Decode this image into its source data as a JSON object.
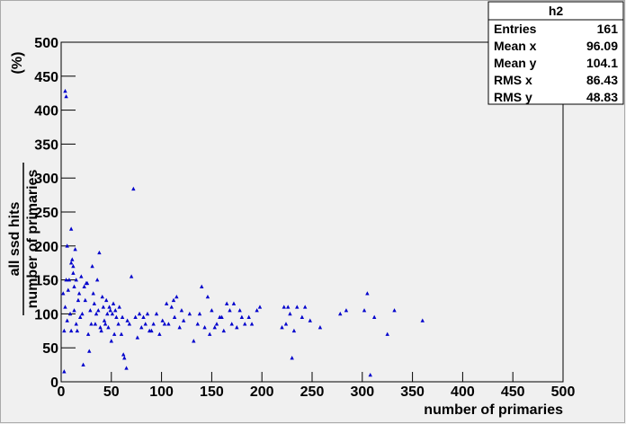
{
  "chart_data": {
    "type": "scatter",
    "x_label": "number of primaries",
    "y_label_numerator": "all ssd hits",
    "y_label_denominator": "number of primaries",
    "y_label_unit": "(%)",
    "xlim": [
      0,
      500
    ],
    "ylim": [
      0,
      500
    ],
    "xticks": [
      0,
      50,
      100,
      150,
      200,
      250,
      300,
      350,
      400,
      450,
      500
    ],
    "yticks": [
      0,
      50,
      100,
      150,
      200,
      250,
      300,
      350,
      400,
      450,
      500
    ],
    "color": "#0000cc",
    "stats": {
      "title": "h2",
      "rows": [
        [
          "Entries",
          "161"
        ],
        [
          "Mean x",
          "96.09"
        ],
        [
          "Mean y",
          "104.1"
        ],
        [
          "RMS x",
          "86.43"
        ],
        [
          "RMS y",
          "48.83"
        ]
      ]
    },
    "x": [
      2,
      3,
      3,
      4,
      5,
      4,
      5,
      6,
      6,
      7,
      8,
      9,
      10,
      10,
      10,
      11,
      12,
      12,
      13,
      13,
      14,
      15,
      15,
      16,
      17,
      18,
      19,
      20,
      21,
      22,
      23,
      24,
      25,
      26,
      27,
      28,
      29,
      30,
      31,
      32,
      33,
      34,
      35,
      36,
      37,
      38,
      39,
      40,
      41,
      42,
      43,
      44,
      45,
      46,
      47,
      48,
      49,
      50,
      51,
      52,
      53,
      54,
      55,
      57,
      58,
      60,
      61,
      62,
      63,
      65,
      66,
      68,
      70,
      72,
      74,
      76,
      78,
      80,
      82,
      84,
      86,
      88,
      90,
      92,
      95,
      98,
      101,
      103,
      105,
      107,
      110,
      112,
      113,
      115,
      118,
      120,
      122,
      128,
      132,
      136,
      138,
      140,
      143,
      146,
      148,
      150,
      153,
      155,
      158,
      160,
      162,
      165,
      168,
      170,
      172,
      175,
      178,
      180,
      183,
      187,
      190,
      195,
      198,
      220,
      222,
      224,
      226,
      228,
      230,
      232,
      235,
      240,
      243,
      248,
      258,
      278,
      284,
      302,
      305,
      308,
      312,
      325,
      332,
      360
    ],
    "y": [
      130,
      75,
      15,
      428,
      420,
      110,
      150,
      200,
      90,
      135,
      150,
      100,
      225,
      175,
      75,
      180,
      170,
      160,
      140,
      105,
      195,
      150,
      85,
      75,
      120,
      130,
      95,
      155,
      100,
      25,
      140,
      120,
      145,
      145,
      70,
      45,
      105,
      85,
      170,
      130,
      115,
      85,
      100,
      150,
      105,
      190,
      80,
      75,
      125,
      110,
      90,
      85,
      120,
      100,
      80,
      110,
      105,
      60,
      100,
      115,
      70,
      105,
      95,
      85,
      110,
      70,
      95,
      40,
      35,
      20,
      90,
      85,
      155,
      284,
      95,
      65,
      100,
      80,
      95,
      85,
      100,
      75,
      75,
      85,
      100,
      70,
      90,
      85,
      115,
      85,
      110,
      120,
      95,
      125,
      80,
      105,
      90,
      100,
      60,
      85,
      100,
      140,
      80,
      125,
      70,
      105,
      80,
      85,
      95,
      95,
      75,
      115,
      105,
      85,
      115,
      80,
      105,
      95,
      85,
      95,
      85,
      105,
      110,
      80,
      110,
      85,
      110,
      100,
      35,
      75,
      110,
      95,
      110,
      90,
      80,
      100,
      105,
      105,
      130,
      10,
      95,
      70,
      105,
      90
    ]
  }
}
